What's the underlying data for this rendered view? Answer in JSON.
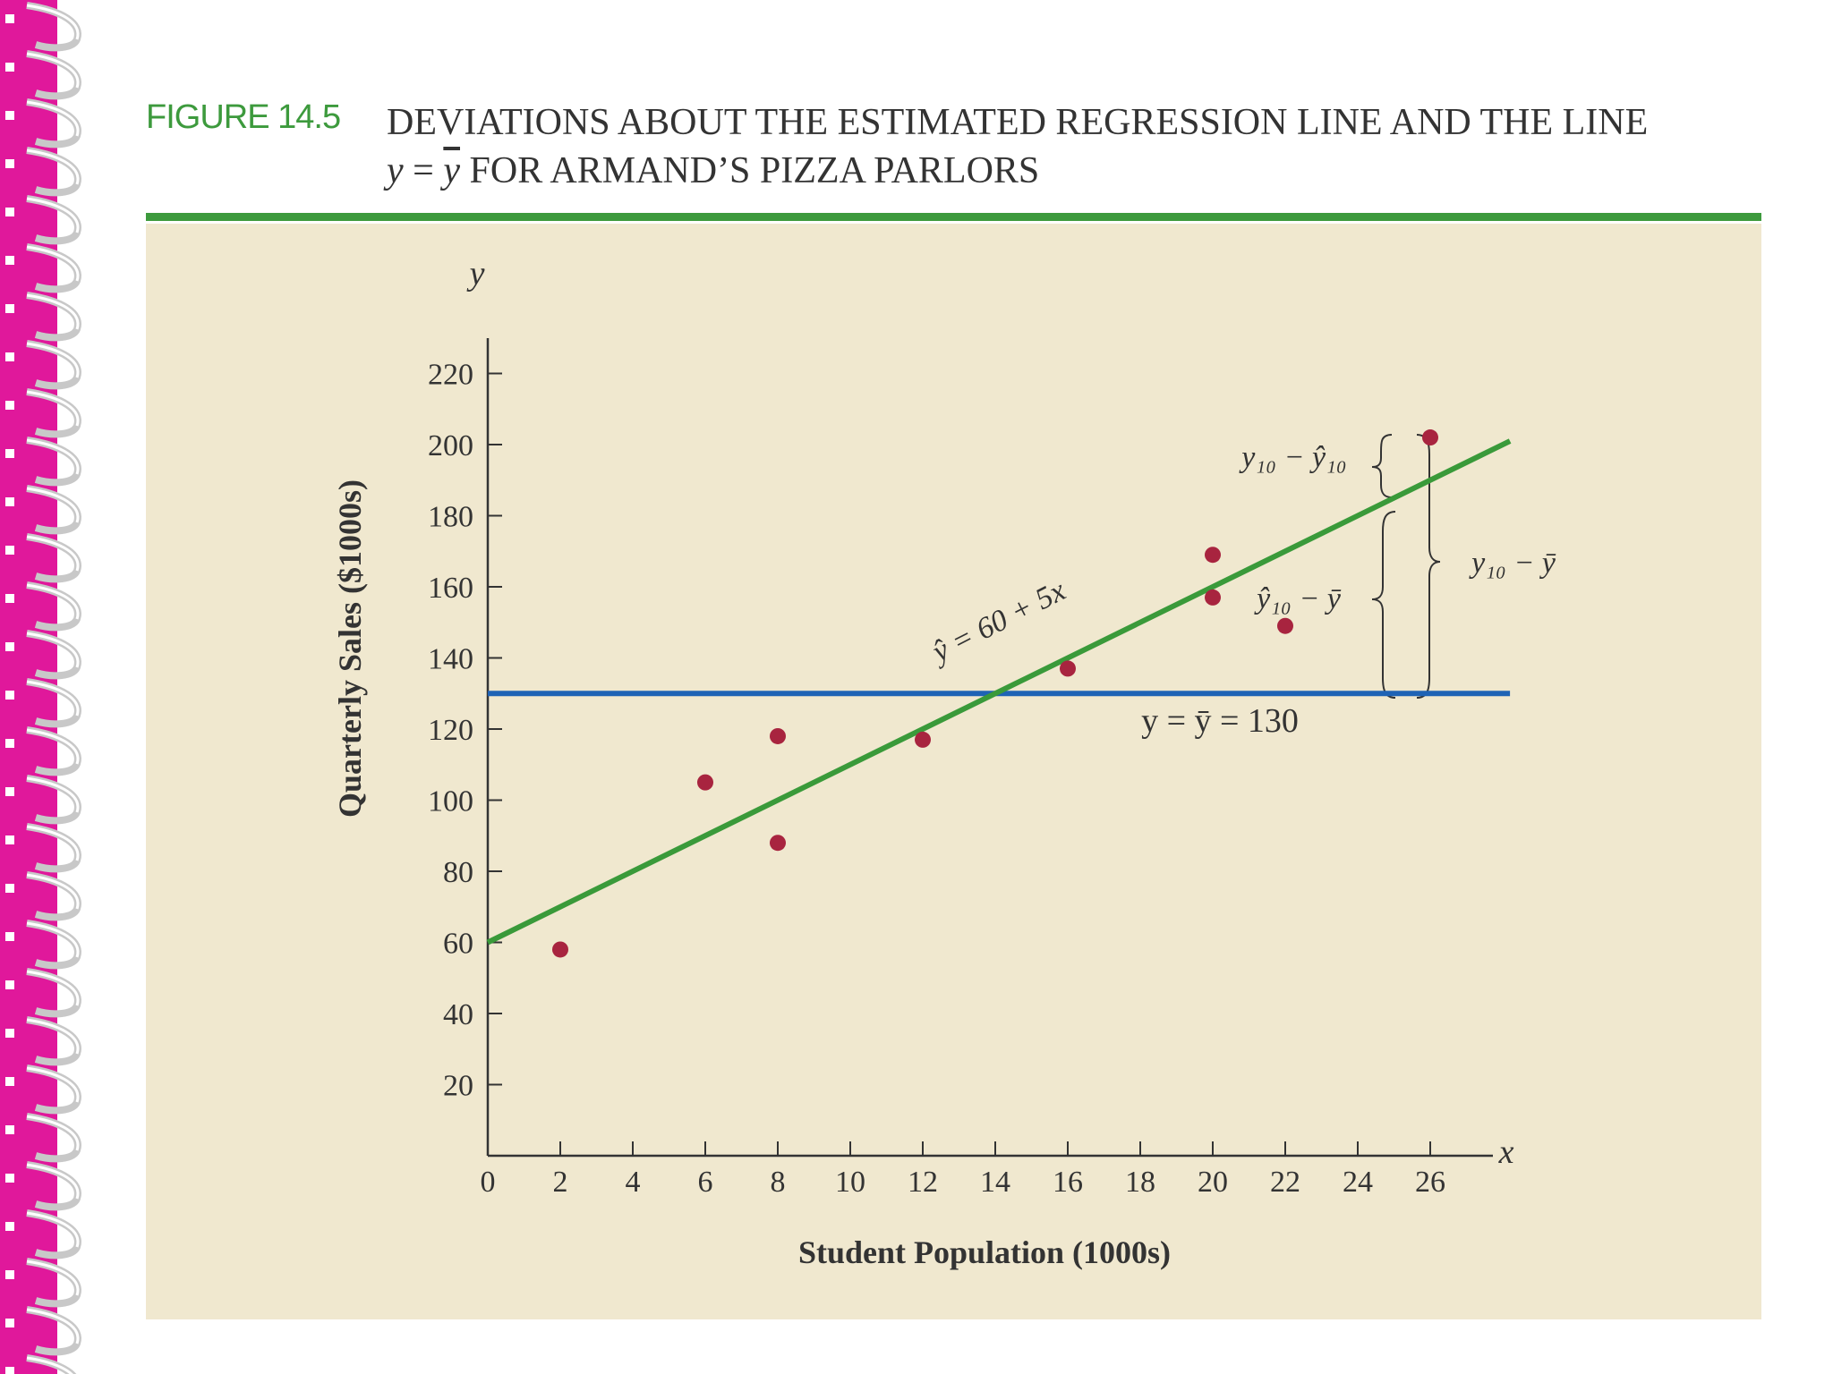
{
  "figure": {
    "label": "FIGURE 14.5",
    "title_line1": "DEVIATIONS ABOUT THE ESTIMATED REGRESSION LINE AND THE LINE",
    "title_line2_lhs": "y",
    "title_line2_eq": " = ",
    "title_line2_ybar": "y",
    "title_line2_rest": " FOR ARMAND’S PIZZA PARLORS"
  },
  "colors": {
    "accent": "#3d9a3d",
    "panel": "#f0e8cf",
    "points": "#a8243f",
    "mean_line": "#1f63b5",
    "regression_line": "#3a9a3a",
    "binding": "#e0189b"
  },
  "chart_data": {
    "type": "scatter",
    "xlabel": "Student Population (1000s)",
    "ylabel": "Quarterly Sales ($1000s)",
    "x_axis_letter": "x",
    "y_axis_letter": "y",
    "xlim": [
      0,
      28
    ],
    "ylim": [
      0,
      230
    ],
    "x_ticks": [
      0,
      2,
      4,
      6,
      8,
      10,
      12,
      14,
      16,
      18,
      20,
      22,
      24,
      26
    ],
    "y_ticks": [
      20,
      40,
      60,
      80,
      100,
      120,
      140,
      160,
      180,
      200,
      220
    ],
    "points": [
      {
        "x": 2,
        "y": 58
      },
      {
        "x": 6,
        "y": 105
      },
      {
        "x": 8,
        "y": 88
      },
      {
        "x": 8,
        "y": 118
      },
      {
        "x": 12,
        "y": 117
      },
      {
        "x": 16,
        "y": 137
      },
      {
        "x": 20,
        "y": 157
      },
      {
        "x": 20,
        "y": 169
      },
      {
        "x": 22,
        "y": 149
      },
      {
        "x": 26,
        "y": 202
      }
    ],
    "regression": {
      "intercept": 60,
      "slope": 5,
      "x_end": 28.2,
      "label": "ŷ = 60 + 5x"
    },
    "mean_line": {
      "y": 130,
      "x_end": 28.2,
      "label": "y = ȳ = 130"
    },
    "annotations": {
      "residual": "y₁₀ − ŷ₁₀",
      "regression_dev": "ŷ₁₀ − ȳ",
      "total_dev": "y₁₀ − ȳ"
    }
  }
}
